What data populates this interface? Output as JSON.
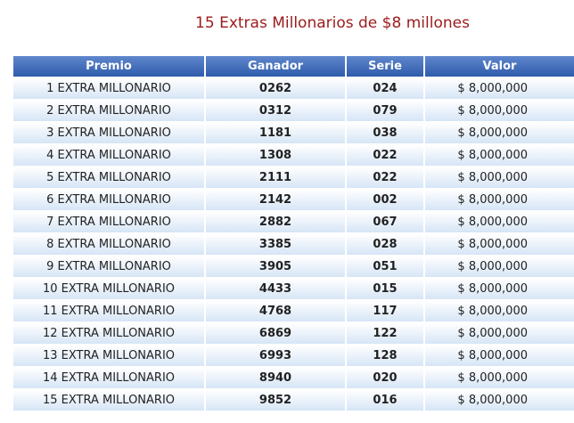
{
  "title": "15 Extras Millonarios de $8 millones",
  "columns": [
    "Premio",
    "Ganador",
    "Serie",
    "Valor"
  ],
  "rows": [
    {
      "premio": "1 EXTRA MILLONARIO",
      "ganador": "0262",
      "serie": "024",
      "valor": "$ 8,000,000"
    },
    {
      "premio": "2 EXTRA MILLONARIO",
      "ganador": "0312",
      "serie": "079",
      "valor": "$ 8,000,000"
    },
    {
      "premio": "3 EXTRA MILLONARIO",
      "ganador": "1181",
      "serie": "038",
      "valor": "$ 8,000,000"
    },
    {
      "premio": "4 EXTRA MILLONARIO",
      "ganador": "1308",
      "serie": "022",
      "valor": "$ 8,000,000"
    },
    {
      "premio": "5 EXTRA MILLONARIO",
      "ganador": "2111",
      "serie": "022",
      "valor": "$ 8,000,000"
    },
    {
      "premio": "6 EXTRA MILLONARIO",
      "ganador": "2142",
      "serie": "002",
      "valor": "$ 8,000,000"
    },
    {
      "premio": "7 EXTRA MILLONARIO",
      "ganador": "2882",
      "serie": "067",
      "valor": "$ 8,000,000"
    },
    {
      "premio": "8 EXTRA MILLONARIO",
      "ganador": "3385",
      "serie": "028",
      "valor": "$ 8,000,000"
    },
    {
      "premio": "9 EXTRA MILLONARIO",
      "ganador": "3905",
      "serie": "051",
      "valor": "$ 8,000,000"
    },
    {
      "premio": "10 EXTRA MILLONARIO",
      "ganador": "4433",
      "serie": "015",
      "valor": "$ 8,000,000"
    },
    {
      "premio": "11 EXTRA MILLONARIO",
      "ganador": "4768",
      "serie": "117",
      "valor": "$ 8,000,000"
    },
    {
      "premio": "12 EXTRA MILLONARIO",
      "ganador": "6869",
      "serie": "122",
      "valor": "$ 8,000,000"
    },
    {
      "premio": "13 EXTRA MILLONARIO",
      "ganador": "6993",
      "serie": "128",
      "valor": "$ 8,000,000"
    },
    {
      "premio": "14 EXTRA MILLONARIO",
      "ganador": "8940",
      "serie": "020",
      "valor": "$ 8,000,000"
    },
    {
      "premio": "15 EXTRA MILLONARIO",
      "ganador": "9852",
      "serie": "016",
      "valor": "$ 8,000,000"
    }
  ]
}
